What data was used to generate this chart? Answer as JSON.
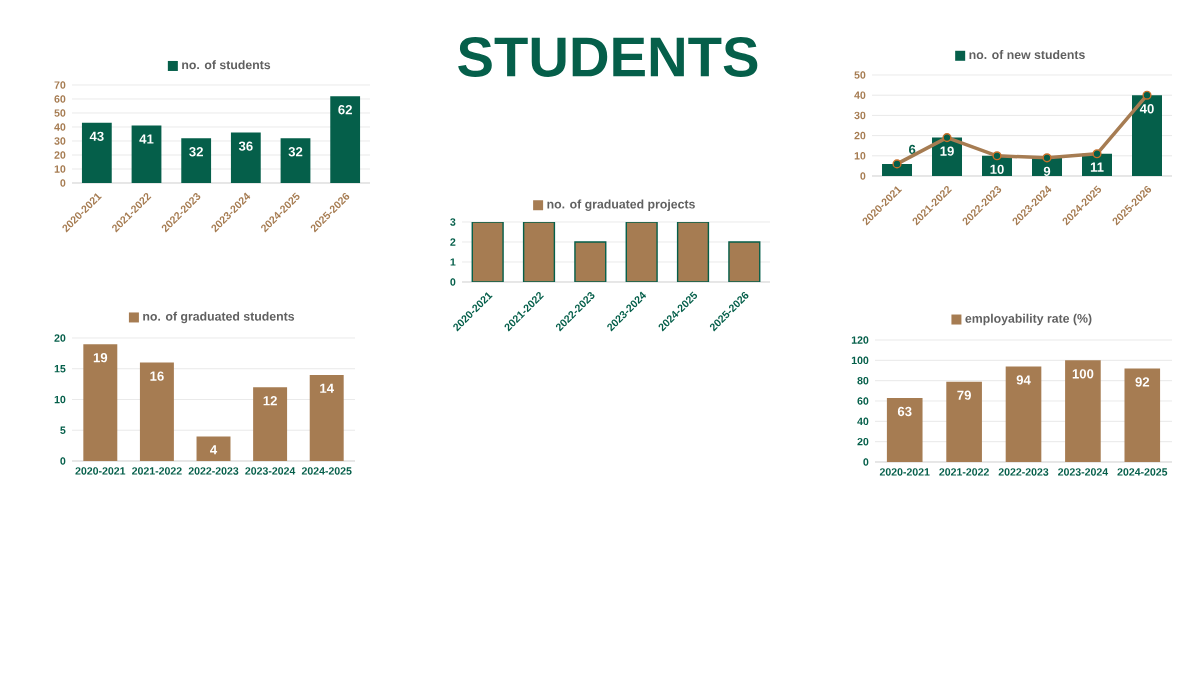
{
  "chart_data": [
    {
      "type": "other",
      "title": "STUDENTS"
    },
    {
      "type": "bar",
      "categories": [
        "2020-2021",
        "2021-2022",
        "2022-2023",
        "2023-2024",
        "2024-2025",
        "2025-2026"
      ],
      "series": [
        {
          "name": "no. of students",
          "color": "#055f4a",
          "values": [
            43,
            41,
            32,
            36,
            32,
            62
          ]
        }
      ],
      "ylim": [
        0,
        70
      ],
      "yticks": [
        0,
        10,
        20,
        30,
        40,
        50,
        60,
        70
      ],
      "grid": "y",
      "legend": "top",
      "data_labels": true
    },
    {
      "type": "bar",
      "categories": [
        "2020-2021",
        "2021-2022",
        "2022-2023",
        "2023-2024",
        "2024-2025",
        "2025-2026"
      ],
      "series": [
        {
          "name": "no. of new students",
          "color": "#055f4a",
          "values": [
            6,
            19,
            10,
            9,
            11,
            40
          ],
          "value_labels": [
            "6",
            "19",
            "10",
            "9",
            "11",
            "40"
          ]
        },
        {
          "type": "line",
          "color": "#a67c52",
          "marker": "circle",
          "values": [
            6,
            19,
            10,
            9,
            11,
            40
          ]
        }
      ],
      "ylim": [
        0,
        50
      ],
      "yticks": [
        0,
        10,
        20,
        30,
        40,
        50
      ],
      "grid": "y",
      "legend": "top"
    },
    {
      "type": "bar",
      "categories": [
        "2020-2021",
        "2021-2022",
        "2022-2023",
        "2023-2024",
        "2024-2025",
        "2025-2026"
      ],
      "series": [
        {
          "name": "no. of graduated projects",
          "color": "#a67c52",
          "values": [
            3,
            3,
            2,
            3,
            3,
            2
          ]
        }
      ],
      "ylim": [
        0,
        3
      ],
      "yticks": [
        0,
        1,
        2,
        3
      ],
      "grid": "y",
      "legend": "top"
    },
    {
      "type": "bar",
      "categories": [
        "2020-2021",
        "2021-2022",
        "2022-2023",
        "2023-2024",
        "2024-2025"
      ],
      "series": [
        {
          "name": "no. of graduated students",
          "color": "#a67c52",
          "values": [
            19,
            16,
            4,
            12,
            14
          ]
        }
      ],
      "ylim": [
        0,
        20
      ],
      "yticks": [
        0,
        5,
        10,
        15,
        20
      ],
      "grid": "y",
      "legend": "top",
      "data_labels": true
    },
    {
      "type": "bar",
      "categories": [
        "2020-2021",
        "2021-2022",
        "2022-2023",
        "2023-2024",
        "2024-2025"
      ],
      "series": [
        {
          "name": "employability rate (%)",
          "color": "#a67c52",
          "values": [
            63,
            79,
            94,
            100,
            92
          ]
        }
      ],
      "ylim": [
        0,
        120
      ],
      "yticks": [
        0,
        20,
        40,
        60,
        80,
        100,
        120
      ],
      "grid": "y",
      "legend": "top",
      "data_labels": true
    }
  ]
}
